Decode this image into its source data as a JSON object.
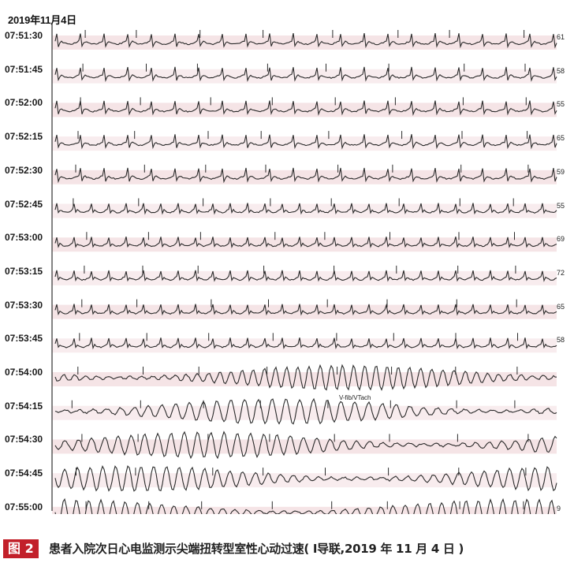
{
  "figure": {
    "date_label": "2019年11月4日",
    "time_labels": [
      "07:51:30",
      "07:51:45",
      "07:52:00",
      "07:52:15",
      "07:52:30",
      "07:52:45",
      "07:53:00",
      "07:53:15",
      "07:53:30",
      "07:53:45",
      "07:54:00",
      "07:54:15",
      "07:54:30",
      "07:54:45",
      "07:55:00"
    ],
    "heart_rates": [
      "61",
      "58",
      "55",
      "65",
      "59",
      "55",
      "69",
      "72",
      "65",
      "58",
      "",
      "",
      "",
      "",
      "9"
    ],
    "rhythm_annotation": "V-fib/VTach",
    "colors": {
      "trace": "#2a2a2a",
      "band": "#f3dde0",
      "badge": "#c2202a"
    }
  },
  "caption": {
    "badge": "图 2",
    "text": "患者入院次日心电监测示尖端扭转型室性心动过速( Ⅰ导联,2019 年 11 月 4 日 )"
  }
}
